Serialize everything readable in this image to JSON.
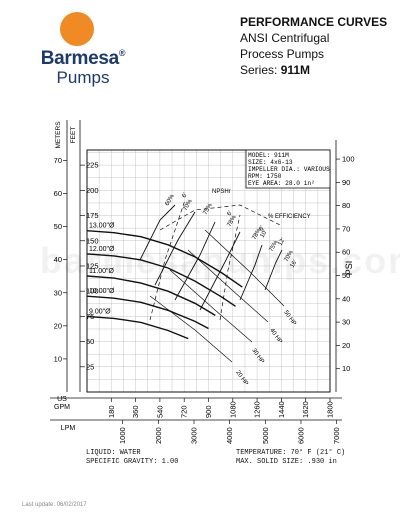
{
  "header": {
    "title": "PERFORMANCE CURVES",
    "line1": "ANSI Centrifugal",
    "line2": "Process Pumps",
    "series_prefix": "Series: ",
    "series_value": "911M"
  },
  "logo": {
    "brand": "Barmesa",
    "sub": "Pumps",
    "reg": "®"
  },
  "watermark": "barmesapumps.com",
  "footer": {
    "liquid": "LIQUID: WATER",
    "gravity": "SPECIFIC GRAVITY: 1.00",
    "temperature": "TEMPERATURE: 70° F (21° C)",
    "solid": "MAX. SOLID SIZE: .930 in",
    "last_update": "Last update: 06/02/2017"
  },
  "chart_data": {
    "type": "line",
    "info_box": [
      "MODEL: 911M",
      "SIZE: 4x6-13",
      "IMPELLER DIA.: VARIOUS",
      "RPM: 1750",
      "EYE AREA: 28.0 in²"
    ],
    "axis_labels": {
      "meters": "METERS",
      "feet": "FEET",
      "psi": "PSI",
      "us_gpm": "US GPM",
      "lpm": "LPM",
      "npshr": "NPSHr",
      "efficiency": "% EFFICIENCY"
    },
    "x_gpm_ticks": [
      180,
      360,
      540,
      720,
      900,
      1080,
      1260,
      1440,
      1620,
      1800
    ],
    "x_gpm_range": [
      0,
      1800
    ],
    "lpm_ticks": [
      1000,
      2000,
      3000,
      4000,
      5000,
      6000,
      7000
    ],
    "feet_ticks": [
      25,
      50,
      75,
      100,
      125,
      150,
      175,
      200,
      225
    ],
    "feet_range": [
      0,
      240
    ],
    "meters_ticks": [
      10,
      20,
      30,
      40,
      50,
      60,
      70
    ],
    "psi_ticks": [
      10,
      20,
      30,
      40,
      50,
      60,
      70,
      80,
      90,
      100
    ],
    "series": [
      {
        "name": "13.00\"Ø",
        "x": [
          0,
          200,
          400,
          600,
          800,
          1000,
          1150
        ],
        "y": [
          160,
          158,
          154,
          146,
          134,
          118,
          104
        ]
      },
      {
        "name": "12.00\"Ø",
        "x": [
          0,
          200,
          400,
          600,
          800,
          1000,
          1100
        ],
        "y": [
          137,
          135,
          131,
          123,
          110,
          94,
          85
        ]
      },
      {
        "name": "11.00\"Ø",
        "x": [
          0,
          200,
          400,
          600,
          800,
          950
        ],
        "y": [
          115,
          113,
          108,
          100,
          88,
          76
        ]
      },
      {
        "name": "10.00\"Ø",
        "x": [
          0,
          200,
          400,
          600,
          800,
          900
        ],
        "y": [
          95,
          93,
          89,
          81,
          70,
          63
        ]
      },
      {
        "name": "9.00\"Ø",
        "x": [
          0,
          200,
          400,
          600,
          750
        ],
        "y": [
          75,
          73,
          69,
          61,
          53
        ]
      }
    ],
    "efficiency_labels": [
      "60%",
      "70%",
      "75%",
      "78%",
      "78%",
      "75%",
      "70%"
    ],
    "npsh_labels": [
      "6'",
      "6'",
      "8'",
      "10'",
      "12'",
      "16'"
    ],
    "hp_labels": [
      "20 HP",
      "30 HP",
      "40 HP",
      "50 HP"
    ]
  }
}
